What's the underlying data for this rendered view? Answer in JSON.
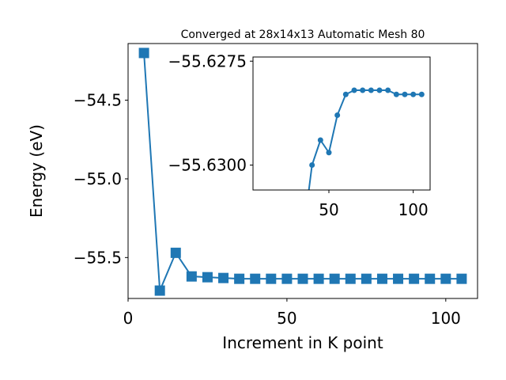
{
  "chart_data": [
    {
      "type": "line",
      "title": "Converged at 28x14x13 Automatic Mesh 80",
      "xlabel": "Increment in K point",
      "ylabel": "Energy (eV)",
      "xlim": [
        0,
        110
      ],
      "ylim": [
        -55.76,
        -54.14
      ],
      "xticks": [
        0,
        50,
        100
      ],
      "yticks": [
        -54.5,
        -55.0,
        -55.5
      ],
      "xtick_labels": [
        "0",
        "50",
        "100"
      ],
      "ytick_labels": [
        "−54.5",
        "−55.0",
        "−55.5"
      ],
      "marker": "square",
      "color": "#1f77b4",
      "grid": false,
      "series": [
        {
          "x": [
            5,
            10,
            15,
            20,
            25,
            30,
            35,
            40,
            45,
            50,
            55,
            60,
            65,
            70,
            75,
            80,
            85,
            90,
            95,
            100,
            105
          ],
          "y": [
            -54.2,
            -55.71,
            -55.47,
            -55.62,
            -55.625,
            -55.63,
            -55.635,
            -55.635,
            -55.635,
            -55.635,
            -55.635,
            -55.635,
            -55.635,
            -55.635,
            -55.635,
            -55.635,
            -55.635,
            -55.635,
            -55.635,
            -55.635,
            -55.635
          ]
        }
      ]
    },
    {
      "type": "line",
      "title": "",
      "xlim": [
        5,
        110
      ],
      "ylim": [
        -55.6306,
        -55.6274
      ],
      "xticks": [
        50,
        100
      ],
      "yticks": [
        -55.63,
        -55.6275
      ],
      "xtick_labels": [
        "50",
        "100"
      ],
      "ytick_labels": [
        "−55.6300",
        "−55.6275"
      ],
      "marker": "circle",
      "color": "#1f77b4",
      "grid": false,
      "series": [
        {
          "x": [
            35,
            40,
            45,
            50,
            55,
            60,
            65,
            70,
            75,
            80,
            85,
            90,
            95,
            100,
            105
          ],
          "y": [
            -55.6316,
            -55.63,
            -55.6294,
            -55.6297,
            -55.6288,
            -55.6283,
            -55.6282,
            -55.6282,
            -55.6282,
            -55.6282,
            -55.6282,
            -55.6283,
            -55.6283,
            -55.6283,
            -55.6283
          ]
        }
      ]
    }
  ]
}
